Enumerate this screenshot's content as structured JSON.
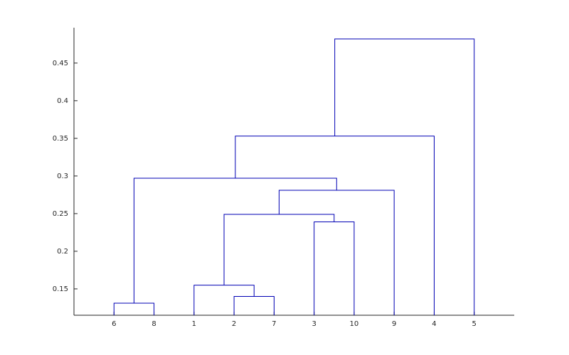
{
  "chart_data": {
    "type": "dendrogram",
    "categories": [
      "6",
      "8",
      "1",
      "2",
      "7",
      "3",
      "10",
      "9",
      "4",
      "5"
    ],
    "links": [
      {
        "children": [
          0,
          1
        ],
        "height": 0.131
      },
      {
        "children": [
          3,
          4
        ],
        "height": 0.14
      },
      {
        "children": [
          2,
          11
        ],
        "height": 0.155
      },
      {
        "children": [
          5,
          6
        ],
        "height": 0.239
      },
      {
        "children": [
          12,
          13
        ],
        "height": 0.249
      },
      {
        "children": [
          14,
          7
        ],
        "height": 0.281
      },
      {
        "children": [
          10,
          15
        ],
        "height": 0.297
      },
      {
        "children": [
          16,
          8
        ],
        "height": 0.353
      },
      {
        "children": [
          17,
          9
        ],
        "height": 0.482
      }
    ],
    "color": "#0000b4",
    "ylim": [
      0.115,
      0.497
    ],
    "yticks": [
      0.15,
      0.2,
      0.25,
      0.3,
      0.35,
      0.4,
      0.45
    ]
  }
}
